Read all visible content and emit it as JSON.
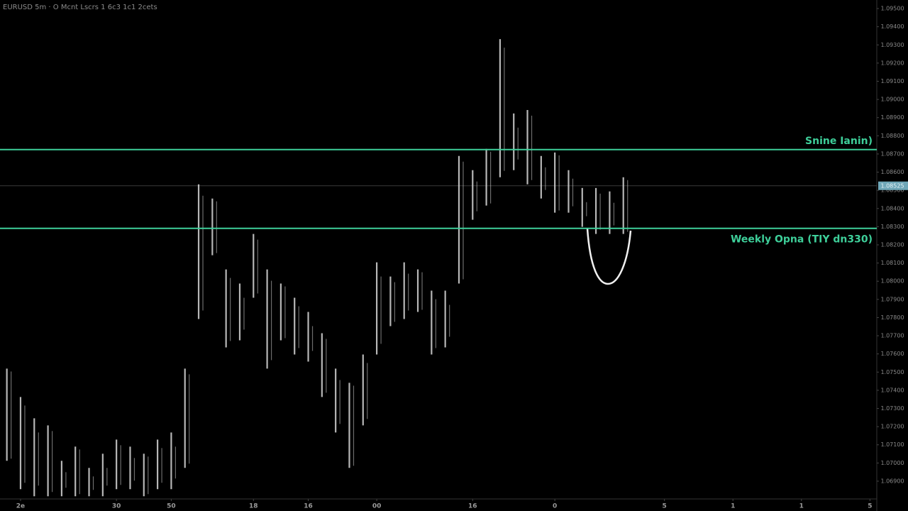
{
  "chart_data": {
    "type": "range",
    "title": "EURUSD 5m · O Mcnt Lscrs 1 6c3 1c1 2cets",
    "color": "#d8d8d8",
    "xlim": [
      -0.5,
      63.5
    ],
    "xticks": [
      {
        "value": 1,
        "label": "2e"
      },
      {
        "value": 8,
        "label": "30"
      },
      {
        "value": 12,
        "label": "50"
      },
      {
        "value": 18,
        "label": "18"
      },
      {
        "value": 22,
        "label": "16"
      },
      {
        "value": 27,
        "label": "00"
      },
      {
        "value": 34,
        "label": "16"
      },
      {
        "value": 40,
        "label": "0"
      },
      {
        "value": 48,
        "label": "5"
      },
      {
        "value": 53,
        "label": "1"
      },
      {
        "value": 58,
        "label": "1"
      },
      {
        "value": 63,
        "label": "5"
      }
    ],
    "ylim": [
      1.06814,
      1.09547
    ],
    "yticks": [
      {
        "value": 1.095,
        "label": "1.09500"
      },
      {
        "value": 1.094,
        "label": "1.09400"
      },
      {
        "value": 1.093,
        "label": "1.09300"
      },
      {
        "value": 1.092,
        "label": "1.09200"
      },
      {
        "value": 1.091,
        "label": "1.09100"
      },
      {
        "value": 1.09,
        "label": "1.09000"
      },
      {
        "value": 1.089,
        "label": "1.08900"
      },
      {
        "value": 1.088,
        "label": "1.08800"
      },
      {
        "value": 1.087,
        "label": "1.08700"
      },
      {
        "value": 1.086,
        "label": "1.08600"
      },
      {
        "value": 1.085,
        "label": "1.08500"
      },
      {
        "value": 1.084,
        "label": "1.08400"
      },
      {
        "value": 1.083,
        "label": "1.08300"
      },
      {
        "value": 1.082,
        "label": "1.08200"
      },
      {
        "value": 1.081,
        "label": "1.08100"
      },
      {
        "value": 1.08,
        "label": "1.08000"
      },
      {
        "value": 1.079,
        "label": "1.07900"
      },
      {
        "value": 1.078,
        "label": "1.07800"
      },
      {
        "value": 1.077,
        "label": "1.07700"
      },
      {
        "value": 1.076,
        "label": "1.07600"
      },
      {
        "value": 1.075,
        "label": "1.07500"
      },
      {
        "value": 1.074,
        "label": "1.07400"
      },
      {
        "value": 1.073,
        "label": "1.07300"
      },
      {
        "value": 1.072,
        "label": "1.07200"
      },
      {
        "value": 1.071,
        "label": "1.07100"
      },
      {
        "value": 1.07,
        "label": "1.07000"
      },
      {
        "value": 1.069,
        "label": "1.06900"
      }
    ],
    "high": [
      1.07519,
      1.07363,
      1.07246,
      1.07207,
      1.07012,
      1.0709,
      1.06973,
      1.07051,
      1.07129,
      1.0709,
      1.07051,
      1.07129,
      1.07168,
      1.07519,
      1.08533,
      1.08455,
      1.08065,
      1.07987,
      1.0826,
      1.08065,
      1.07987,
      1.07909,
      1.07831,
      1.07714,
      1.07519,
      1.07441,
      1.07597,
      1.08104,
      1.08026,
      1.08104,
      1.08065,
      1.07948,
      1.07948,
      1.08689,
      1.08611,
      1.08728,
      1.09332,
      1.08923,
      1.08942,
      1.08689,
      1.08708,
      1.08611,
      1.08513,
      1.08513,
      1.08494,
      1.08572
    ],
    "low": [
      1.07012,
      1.06856,
      1.06817,
      1.06817,
      1.06817,
      1.06817,
      1.06817,
      1.06817,
      1.06856,
      1.06856,
      1.06817,
      1.06856,
      1.06856,
      1.06973,
      1.07792,
      1.08143,
      1.07636,
      1.07675,
      1.07909,
      1.07519,
      1.07675,
      1.07597,
      1.07558,
      1.07363,
      1.07168,
      1.06973,
      1.07207,
      1.07597,
      1.07753,
      1.07792,
      1.07831,
      1.07597,
      1.07636,
      1.07987,
      1.08338,
      1.08416,
      1.08572,
      1.08611,
      1.08533,
      1.08455,
      1.08377,
      1.08377,
      1.08299,
      1.0826,
      1.0826,
      1.0826
    ],
    "levels": [
      {
        "name": "Snine Ianin)",
        "value": 1.08724,
        "color": "#3ecf9a"
      },
      {
        "name": "Weekly Opna (TIY dn330)",
        "value": 1.08291,
        "color": "#3ecf9a"
      }
    ],
    "last_price": 1.08525
  }
}
